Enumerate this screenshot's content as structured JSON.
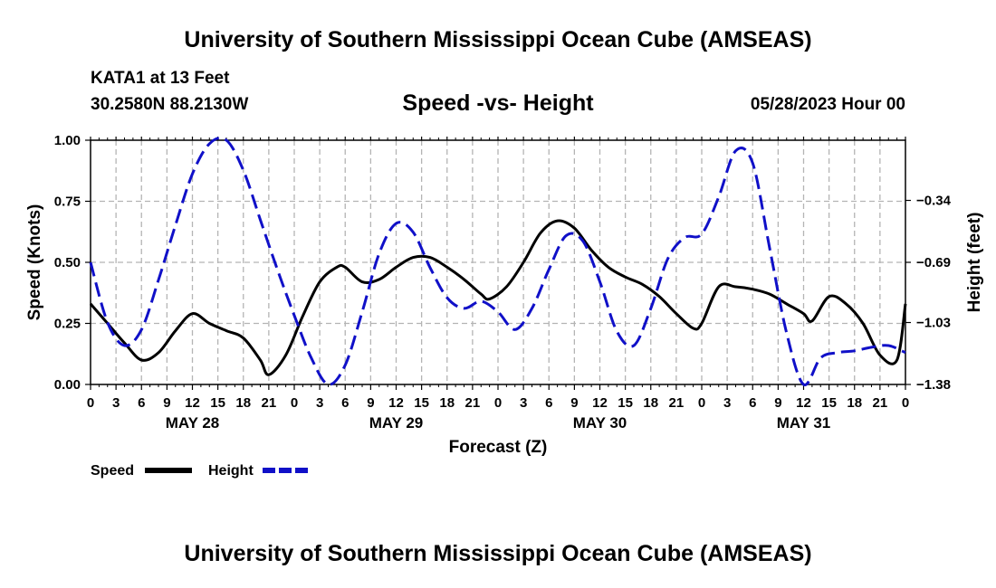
{
  "header": {
    "title": "University of Southern Mississippi Ocean Cube (AMSEAS)",
    "station": "KATA1 at 13 Feet",
    "coords": "30.2580N  88.2130W",
    "subtitle": "Speed -vs- Height",
    "datetime": "05/28/2023 Hour 00"
  },
  "footer": {
    "title": "University of Southern Mississippi Ocean Cube (AMSEAS)"
  },
  "chart_data": {
    "type": "line",
    "title": "Speed -vs- Height",
    "xlabel": "Forecast (Z)",
    "ylabel": "Speed (Knots)",
    "y2label": "Height (feet)",
    "xlim": [
      0,
      96
    ],
    "ylim": [
      0,
      1
    ],
    "y2lim": [
      -1.38,
      0
    ],
    "grid": true,
    "x_ticks": [
      0,
      3,
      6,
      9,
      12,
      15,
      18,
      21,
      24,
      27,
      30,
      33,
      36,
      39,
      42,
      45,
      48,
      51,
      54,
      57,
      60,
      63,
      66,
      69,
      72,
      75,
      78,
      81,
      84,
      87,
      90,
      93,
      96
    ],
    "x_tick_labels": [
      "0",
      "3",
      "6",
      "9",
      "12",
      "15",
      "18",
      "21",
      "0",
      "3",
      "6",
      "9",
      "12",
      "15",
      "18",
      "21",
      "0",
      "3",
      "6",
      "9",
      "12",
      "15",
      "18",
      "21",
      "0",
      "3",
      "6",
      "9",
      "12",
      "15",
      "18",
      "21",
      "0"
    ],
    "day_labels": [
      {
        "x": 12,
        "label": "MAY 28"
      },
      {
        "x": 36,
        "label": "MAY 29"
      },
      {
        "x": 60,
        "label": "MAY 30"
      },
      {
        "x": 84,
        "label": "MAY 31"
      }
    ],
    "y_ticks": [
      0,
      0.25,
      0.5,
      0.75,
      1.0
    ],
    "y_tick_labels": [
      "0.00",
      "0.25",
      "0.50",
      "0.75",
      "1.00"
    ],
    "y2_ticks": [
      -1.38,
      -1.03,
      -0.69,
      -0.34
    ],
    "y2_tick_labels": [
      "−1.38",
      "−1.03",
      "−0.69",
      "−0.34"
    ],
    "legend": [
      {
        "name": "Speed",
        "color": "#000000",
        "dash": "solid"
      },
      {
        "name": "Height",
        "color": "#1010c8",
        "dash": "dashed"
      }
    ],
    "series": [
      {
        "name": "Speed",
        "axis": "left",
        "color": "#000000",
        "x": [
          0,
          2,
          4,
          6,
          8,
          10,
          12,
          14,
          16,
          18,
          20,
          21,
          23,
          25,
          27,
          29,
          30,
          32,
          34,
          36,
          38,
          40,
          42,
          44,
          46,
          47,
          49,
          51,
          53,
          55,
          57,
          59,
          61,
          63,
          65,
          67,
          69,
          71,
          72,
          74,
          76,
          78,
          80,
          82,
          84,
          85,
          87,
          89,
          91,
          93,
          95,
          96
        ],
        "y": [
          0.33,
          0.25,
          0.17,
          0.1,
          0.13,
          0.22,
          0.29,
          0.25,
          0.22,
          0.19,
          0.1,
          0.04,
          0.12,
          0.28,
          0.42,
          0.48,
          0.48,
          0.42,
          0.43,
          0.48,
          0.52,
          0.52,
          0.48,
          0.43,
          0.37,
          0.35,
          0.4,
          0.5,
          0.62,
          0.67,
          0.64,
          0.55,
          0.48,
          0.44,
          0.41,
          0.36,
          0.29,
          0.23,
          0.25,
          0.4,
          0.4,
          0.39,
          0.37,
          0.33,
          0.29,
          0.26,
          0.36,
          0.33,
          0.25,
          0.12,
          0.1,
          0.33
        ]
      },
      {
        "name": "Height",
        "axis": "right",
        "color": "#1010c8",
        "x": [
          0,
          2,
          4,
          6,
          8,
          10,
          12,
          14,
          16,
          18,
          20,
          22,
          24,
          26,
          28,
          30,
          32,
          34,
          36,
          38,
          40,
          42,
          44,
          46,
          48,
          50,
          52,
          54,
          56,
          58,
          60,
          62,
          64,
          66,
          68,
          70,
          72,
          74,
          76,
          78,
          80,
          82,
          84,
          86,
          88,
          90,
          92,
          94,
          96
        ],
        "y": [
          -0.69,
          -1.03,
          -1.16,
          -1.07,
          -0.79,
          -0.48,
          -0.19,
          -0.02,
          0.0,
          -0.17,
          -0.45,
          -0.73,
          -0.99,
          -1.23,
          -1.38,
          -1.27,
          -0.97,
          -0.64,
          -0.47,
          -0.52,
          -0.72,
          -0.89,
          -0.95,
          -0.91,
          -0.97,
          -1.07,
          -0.95,
          -0.73,
          -0.54,
          -0.57,
          -0.8,
          -1.08,
          -1.16,
          -0.95,
          -0.67,
          -0.55,
          -0.53,
          -0.32,
          -0.06,
          -0.13,
          -0.61,
          -1.09,
          -1.39,
          -1.23,
          -1.2,
          -1.19,
          -1.17,
          -1.16,
          -1.2
        ]
      }
    ]
  }
}
